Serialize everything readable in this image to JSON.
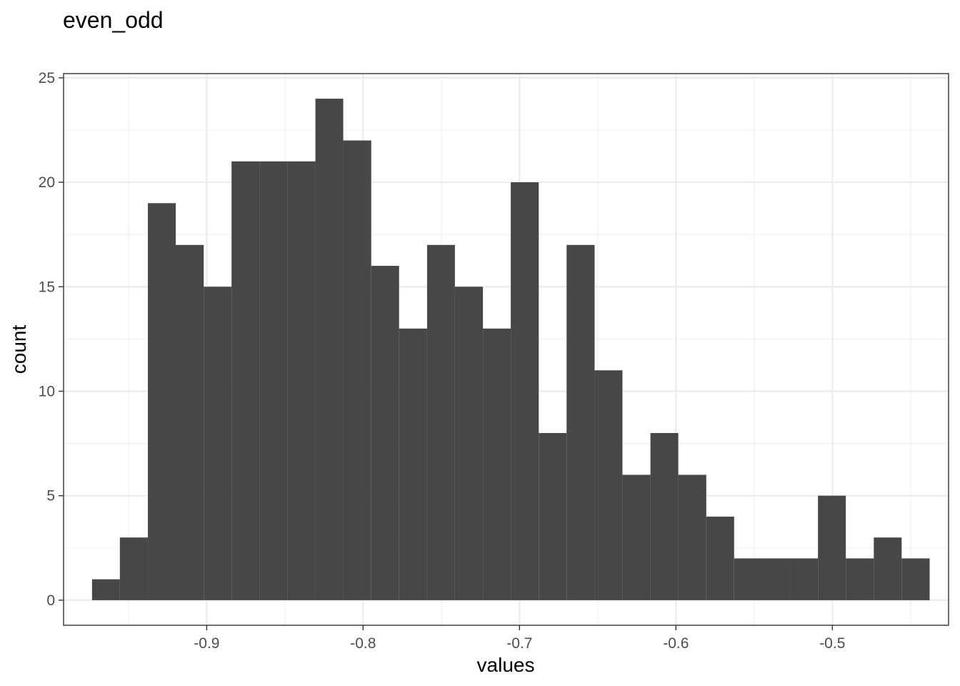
{
  "chart_data": {
    "type": "bar",
    "title": "even_odd",
    "xlabel": "values",
    "ylabel": "count",
    "x_ticks": [
      "-0.9",
      "-0.8",
      "-0.7",
      "-0.6",
      "-0.5"
    ],
    "y_ticks": [
      "0",
      "5",
      "10",
      "15",
      "20",
      "25"
    ],
    "xlim": [
      -0.9915,
      -0.4257
    ],
    "ylim": [
      -1.2,
      25.2
    ],
    "grid": true,
    "legend": "none",
    "bar_color": "#474747",
    "bins": [
      {
        "x0": -0.9733,
        "x1": -0.9555,
        "count": 1
      },
      {
        "x0": -0.9555,
        "x1": -0.9376,
        "count": 3
      },
      {
        "x0": -0.9376,
        "x1": -0.9198,
        "count": 19
      },
      {
        "x0": -0.9198,
        "x1": -0.9019,
        "count": 17
      },
      {
        "x0": -0.9019,
        "x1": -0.8841,
        "count": 15
      },
      {
        "x0": -0.8841,
        "x1": -0.8662,
        "count": 21
      },
      {
        "x0": -0.8662,
        "x1": -0.8484,
        "count": 21
      },
      {
        "x0": -0.8484,
        "x1": -0.8305,
        "count": 21
      },
      {
        "x0": -0.8305,
        "x1": -0.8127,
        "count": 24
      },
      {
        "x0": -0.8127,
        "x1": -0.7948,
        "count": 22
      },
      {
        "x0": -0.7948,
        "x1": -0.777,
        "count": 16
      },
      {
        "x0": -0.777,
        "x1": -0.7591,
        "count": 13
      },
      {
        "x0": -0.7591,
        "x1": -0.7413,
        "count": 17
      },
      {
        "x0": -0.7413,
        "x1": -0.7234,
        "count": 15
      },
      {
        "x0": -0.7234,
        "x1": -0.7056,
        "count": 13
      },
      {
        "x0": -0.7056,
        "x1": -0.6877,
        "count": 20
      },
      {
        "x0": -0.6877,
        "x1": -0.6699,
        "count": 8
      },
      {
        "x0": -0.6699,
        "x1": -0.652,
        "count": 17
      },
      {
        "x0": -0.652,
        "x1": -0.6342,
        "count": 11
      },
      {
        "x0": -0.6342,
        "x1": -0.6163,
        "count": 6
      },
      {
        "x0": -0.6163,
        "x1": -0.5985,
        "count": 8
      },
      {
        "x0": -0.5985,
        "x1": -0.5806,
        "count": 6
      },
      {
        "x0": -0.5806,
        "x1": -0.5628,
        "count": 4
      },
      {
        "x0": -0.5628,
        "x1": -0.5449,
        "count": 2
      },
      {
        "x0": -0.5449,
        "x1": -0.5271,
        "count": 2
      },
      {
        "x0": -0.5271,
        "x1": -0.5092,
        "count": 2
      },
      {
        "x0": -0.5092,
        "x1": -0.4914,
        "count": 5
      },
      {
        "x0": -0.4914,
        "x1": -0.4735,
        "count": 2
      },
      {
        "x0": -0.4735,
        "x1": -0.4557,
        "count": 3
      },
      {
        "x0": -0.4557,
        "x1": -0.4378,
        "count": 2
      }
    ]
  }
}
